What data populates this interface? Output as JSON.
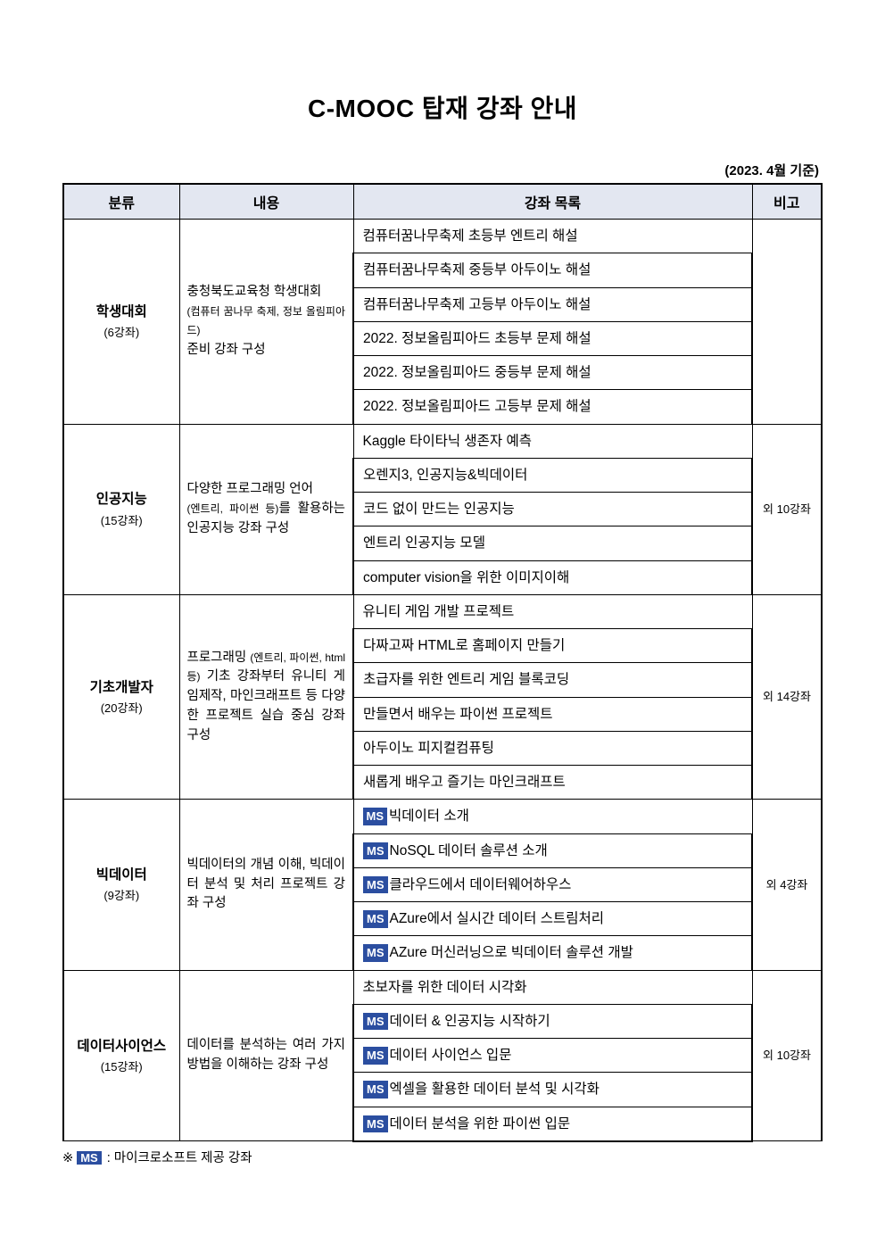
{
  "title": "C-MOOC 탑재 강좌 안내",
  "date_note": "(2023. 4월 기준)",
  "headers": {
    "cat": "분류",
    "desc": "내용",
    "list": "강좌 목록",
    "note": "비고"
  },
  "footnote_prefix": "※",
  "footnote_badge": "MS",
  "footnote_text": ": 마이크로소프트 제공 강좌",
  "ms_badge": "MS",
  "colors": {
    "header_bg": "#e3e7f1",
    "badge_bg": "#2b4ea0",
    "border": "#000000",
    "page_bg": "#ffffff"
  },
  "sections": [
    {
      "cat_title": "학생대회",
      "cat_sub": "(6강좌)",
      "desc_html": "충청북도교육청 학생대회<br><span class=\"small\">(컴퓨터 꿈나무 축제, 정보 올림피아드)</span><br>준비 강좌 구성",
      "note": "",
      "courses": [
        {
          "ms": false,
          "text": "컴퓨터꿈나무축제 초등부 엔트리 해설"
        },
        {
          "ms": false,
          "text": "컴퓨터꿈나무축제 중등부 아두이노 해설"
        },
        {
          "ms": false,
          "text": "컴퓨터꿈나무축제 고등부 아두이노 해설"
        },
        {
          "ms": false,
          "text": "2022. 정보올림피아드 초등부 문제 해설"
        },
        {
          "ms": false,
          "text": "2022. 정보올림피아드 중등부 문제 해설"
        },
        {
          "ms": false,
          "text": "2022. 정보올림피아드 고등부 문제 해설"
        }
      ]
    },
    {
      "cat_title": "인공지능",
      "cat_sub": "(15강좌)",
      "desc_html": "다양한 프로그래밍 언어<br><span class=\"small\">(엔트리, 파이썬 등)</span>를 활용하는 인공지능 강좌 구성",
      "note": "외 10강좌",
      "courses": [
        {
          "ms": false,
          "text": "Kaggle 타이타닉 생존자 예측"
        },
        {
          "ms": false,
          "text": "오렌지3, 인공지능&빅데이터"
        },
        {
          "ms": false,
          "text": "코드 없이 만드는 인공지능"
        },
        {
          "ms": false,
          "text": "엔트리 인공지능 모델"
        },
        {
          "ms": false,
          "text": "computer vision을 위한 이미지이해"
        }
      ]
    },
    {
      "cat_title": "기초개발자",
      "cat_sub": "(20강좌)",
      "desc_html": "프로그래밍 <span class=\"small\">(엔트리, 파이썬, html 등)</span> 기초 강좌부터 유니티 게임제작, 마인크래프트 등 다양한 프로젝트 실습 중심 강좌 구성",
      "note": "외 14강좌",
      "courses": [
        {
          "ms": false,
          "text": "유니티 게임 개발 프로젝트"
        },
        {
          "ms": false,
          "text": "다짜고짜 HTML로 홈페이지 만들기"
        },
        {
          "ms": false,
          "text": "초급자를 위한 엔트리 게임 블록코딩"
        },
        {
          "ms": false,
          "text": "만들면서 배우는 파이썬 프로젝트"
        },
        {
          "ms": false,
          "text": "아두이노 피지컬컴퓨팅"
        },
        {
          "ms": false,
          "text": "새롭게 배우고 즐기는 마인크래프트"
        }
      ]
    },
    {
      "cat_title": "빅데이터",
      "cat_sub": "(9강좌)",
      "desc_html": "빅데이터의 개념 이해, 빅데이터 분석 및 처리 프로젝트 강좌 구성",
      "note": "외 4강좌",
      "courses": [
        {
          "ms": true,
          "text": "빅데이터 소개"
        },
        {
          "ms": true,
          "text": "NoSQL 데이터 솔루션 소개"
        },
        {
          "ms": true,
          "text": "클라우드에서 데이터웨어하우스"
        },
        {
          "ms": true,
          "text": "AZure에서 실시간 데이터 스트림처리"
        },
        {
          "ms": true,
          "text": "AZure 머신러닝으로 빅데이터 솔루션 개발"
        }
      ]
    },
    {
      "cat_title": "데이터사이언스",
      "cat_sub": "(15강좌)",
      "desc_html": "데이터를 분석하는 여러 가지 방법을 이해하는  강좌 구성",
      "note": "외 10강좌",
      "courses": [
        {
          "ms": false,
          "text": "초보자를 위한 데이터 시각화"
        },
        {
          "ms": true,
          "text": "데이터 & 인공지능 시작하기"
        },
        {
          "ms": true,
          "text": "데이터 사이언스 입문"
        },
        {
          "ms": true,
          "text": "엑셀을 활용한 데이터 분석 및 시각화"
        },
        {
          "ms": true,
          "text": "데이터 분석을 위한 파이썬 입문"
        }
      ]
    }
  ]
}
